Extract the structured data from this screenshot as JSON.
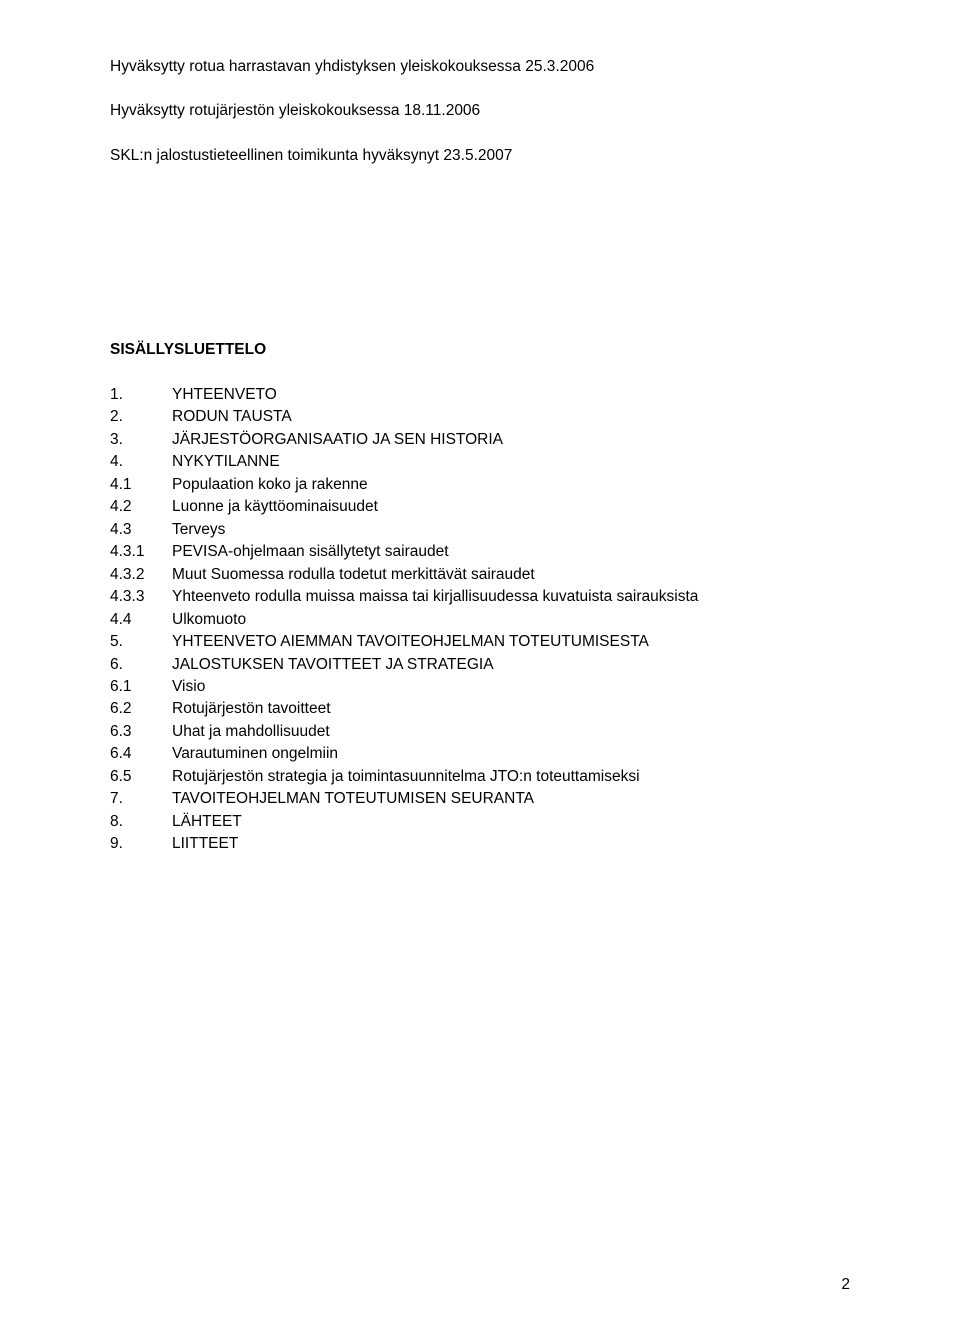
{
  "colors": {
    "background": "#ffffff",
    "text": "#000000"
  },
  "typography": {
    "font_family": "Verdana, Geneva, sans-serif",
    "body_fontsize_pt": 11,
    "line_height": 1.45
  },
  "approval": {
    "line1": "Hyväksytty rotua harrastavan yhdistyksen yleiskokouksessa 25.3.2006",
    "line2": "Hyväksytty rotujärjestön yleiskokouksessa 18.11.2006",
    "line3": "SKL:n jalostustieteellinen toimikunta hyväksynyt 23.5.2007"
  },
  "toc": {
    "heading": "SISÄLLYSLUETTELO",
    "items": [
      {
        "num": "1.",
        "label": "YHTEENVETO"
      },
      {
        "num": "2.",
        "label": "RODUN TAUSTA"
      },
      {
        "num": "3.",
        "label": "JÄRJESTÖORGANISAATIO JA SEN HISTORIA"
      },
      {
        "num": "4.",
        "label": "NYKYTILANNE"
      },
      {
        "num": "4.1",
        "label": "Populaation koko ja rakenne"
      },
      {
        "num": "4.2",
        "label": "Luonne ja käyttöominaisuudet"
      },
      {
        "num": "4.3",
        "label": "Terveys"
      },
      {
        "num": "4.3.1",
        "label": "PEVISA-ohjelmaan sisällytetyt sairaudet"
      },
      {
        "num": "4.3.2",
        "label": "Muut Suomessa rodulla todetut merkittävät sairaudet"
      },
      {
        "num": "4.3.3",
        "label": "Yhteenveto rodulla muissa maissa tai kirjallisuudessa kuvatuista sairauksista"
      },
      {
        "num": "4.4",
        "label": "Ulkomuoto"
      },
      {
        "num": "5.",
        "label": "YHTEENVETO AIEMMAN TAVOITEOHJELMAN TOTEUTUMISESTA"
      },
      {
        "num": "6.",
        "label": "JALOSTUKSEN TAVOITTEET JA STRATEGIA"
      },
      {
        "num": "6.1",
        "label": "Visio"
      },
      {
        "num": "6.2",
        "label": "Rotujärjestön tavoitteet"
      },
      {
        "num": "6.3",
        "label": "Uhat ja mahdollisuudet"
      },
      {
        "num": "6.4",
        "label": "Varautuminen ongelmiin"
      },
      {
        "num": "6.5",
        "label": "Rotujärjestön strategia ja toimintasuunnitelma JTO:n toteuttamiseksi"
      },
      {
        "num": "7.",
        "label": "TAVOITEOHJELMAN TOTEUTUMISEN SEURANTA"
      },
      {
        "num": "8.",
        "label": "LÄHTEET"
      },
      {
        "num": "9.",
        "label": "LIITTEET"
      }
    ]
  },
  "page_number": "2"
}
